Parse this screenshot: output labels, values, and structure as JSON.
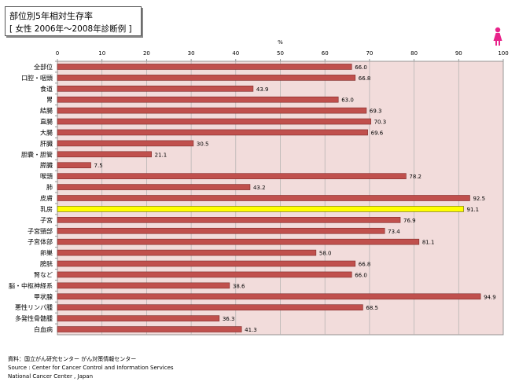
{
  "title": {
    "line1": "部位別5年相対生存率",
    "line2": "[ 女性  2006年〜2008年診断例 ]"
  },
  "axis_unit": "%",
  "gender_icon": "female-icon",
  "footnote": [
    "資料：国立がん研究センター  がん対策情報センター",
    "Source : Center for Cancer Control and Information Services",
    "National Cancer Center , Japan"
  ],
  "colors": {
    "bar": "#c0504d",
    "highlight_bar": "#ffff00",
    "plot_bg": "#f2dcdb",
    "icon": "#e8238a"
  },
  "chart_data": {
    "type": "bar",
    "orientation": "horizontal",
    "xlabel": "%",
    "xlim": [
      0,
      100
    ],
    "xticks": [
      0,
      10,
      20,
      30,
      40,
      50,
      60,
      70,
      80,
      90,
      100
    ],
    "grid": true,
    "highlight": "乳房",
    "categories": [
      "全部位",
      "口腔・咽頭",
      "食道",
      "胃",
      "結腸",
      "直腸",
      "大腸",
      "肝臓",
      "胆嚢・胆管",
      "膵臓",
      "喉頭",
      "肺",
      "皮膚",
      "乳房",
      "子宮",
      "子宮頸部",
      "子宮体部",
      "卵巣",
      "膀胱",
      "腎など",
      "脳・中枢神経系",
      "甲状腺",
      "悪性リンパ腫",
      "多発性骨髄腫",
      "白血病"
    ],
    "values": [
      66.0,
      66.8,
      43.9,
      63.0,
      69.3,
      70.3,
      69.6,
      30.5,
      21.1,
      7.5,
      78.2,
      43.2,
      92.5,
      91.1,
      76.9,
      73.4,
      81.1,
      58.0,
      66.8,
      66.0,
      38.6,
      94.9,
      68.5,
      36.3,
      41.3
    ],
    "labels": [
      "66.0",
      "66.8",
      "43.9",
      "63.0",
      "69.3",
      "70.3",
      "69.6",
      "30.5",
      "21.1",
      "7.5",
      "78.2",
      "43.2",
      "92.5",
      "91.1",
      "76.9",
      "73.4",
      "81.1",
      "58.0",
      "66.8",
      "66.0",
      "38.6",
      "94.9",
      "68.5",
      "36.3",
      "41.3"
    ]
  }
}
